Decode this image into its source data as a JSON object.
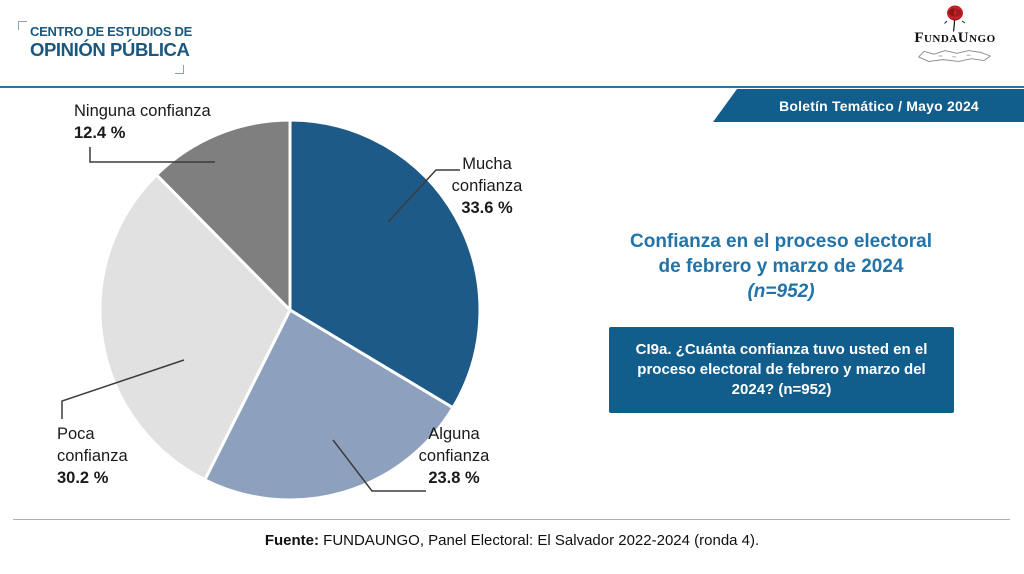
{
  "header": {
    "left_logo": {
      "line1": "CENTRO DE ESTUDIOS DE",
      "line2": "OPINIÓN PÚBLICA"
    },
    "right_logo": {
      "brand": "FundaUngo"
    },
    "banner": "Boletín Temático / Mayo 2024"
  },
  "title": {
    "line1": "Confianza en el proceso electoral",
    "line2": "de febrero y marzo de 2024",
    "line3": "(n=952)"
  },
  "question_box": "CI9a. ¿Cuánta confianza tuvo usted en el proceso electoral de febrero y marzo del 2024? (n=952)",
  "callouts": {
    "mucha": {
      "line1": "Mucha",
      "line2": "confianza",
      "pct": "33.6 %"
    },
    "alguna": {
      "line1": "Alguna",
      "line2": "confianza",
      "pct": "23.8 %"
    },
    "poca": {
      "line1": "Poca",
      "line2": "confianza",
      "pct": "30.2 %"
    },
    "ninguna": {
      "line1": "Ninguna confianza",
      "pct": "12.4 %"
    }
  },
  "footer": {
    "label": "Fuente:",
    "rest": " FUNDAUNGO, Panel Electoral: El Salvador 2022-2024 (ronda 4)."
  },
  "chart_data": {
    "type": "pie",
    "title": "Confianza en el proceso electoral de febrero y marzo de 2024 (n=952)",
    "unit": "%",
    "n": 952,
    "start_angle_deg": -90,
    "direction": "clockwise",
    "donut": false,
    "slices": [
      {
        "label": "Mucha confianza",
        "value": 33.6,
        "color": "#1E5A87"
      },
      {
        "label": "Alguna confianza",
        "value": 23.8,
        "color": "#8DA1BF"
      },
      {
        "label": "Poca confianza",
        "value": 30.2,
        "color": "#E1E1E1"
      },
      {
        "label": "Ninguna confianza",
        "value": 12.4,
        "color": "#7F7F7F"
      }
    ]
  },
  "colors": {
    "banner_blue": "#115D8B",
    "title_blue": "#2173A8",
    "rule_blue": "#2E74A2",
    "logo_blue": "#1A587F",
    "logo_red": "#C42128",
    "text_dark": "#1A1A1A",
    "line_gray": "#A9B4BC",
    "leader_gray": "#3C3C3C"
  }
}
